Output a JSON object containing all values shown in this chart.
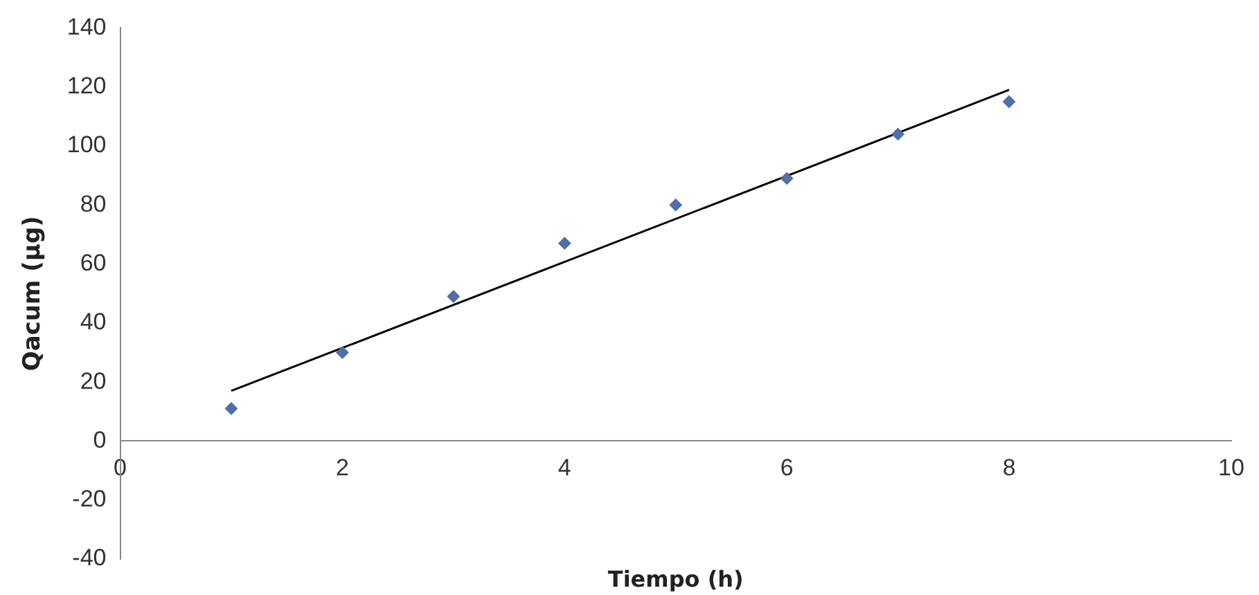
{
  "chart_data": {
    "type": "scatter",
    "xlabel": "Tiempo (h)",
    "ylabel": "Qacum (µg)",
    "x": [
      1,
      2,
      3,
      4,
      5,
      6,
      7,
      8
    ],
    "series": [
      {
        "color": "#4f6fa8",
        "values": [
          11,
          30,
          49,
          67,
          80,
          89,
          104,
          115
        ]
      },
      {
        "type": "line",
        "color": "#000000",
        "x": [
          1,
          8
        ],
        "values": [
          17,
          119
        ],
        "marker": "none"
      }
    ],
    "xlim": [
      0,
      10
    ],
    "xticks": [
      0,
      2,
      4,
      6,
      8,
      10
    ],
    "ylim": [
      -40,
      140
    ],
    "yticks": [
      -40,
      -20,
      0,
      20,
      40,
      60,
      80,
      100,
      120,
      140
    ],
    "grid": false,
    "legend": false,
    "marker": "diamond"
  }
}
